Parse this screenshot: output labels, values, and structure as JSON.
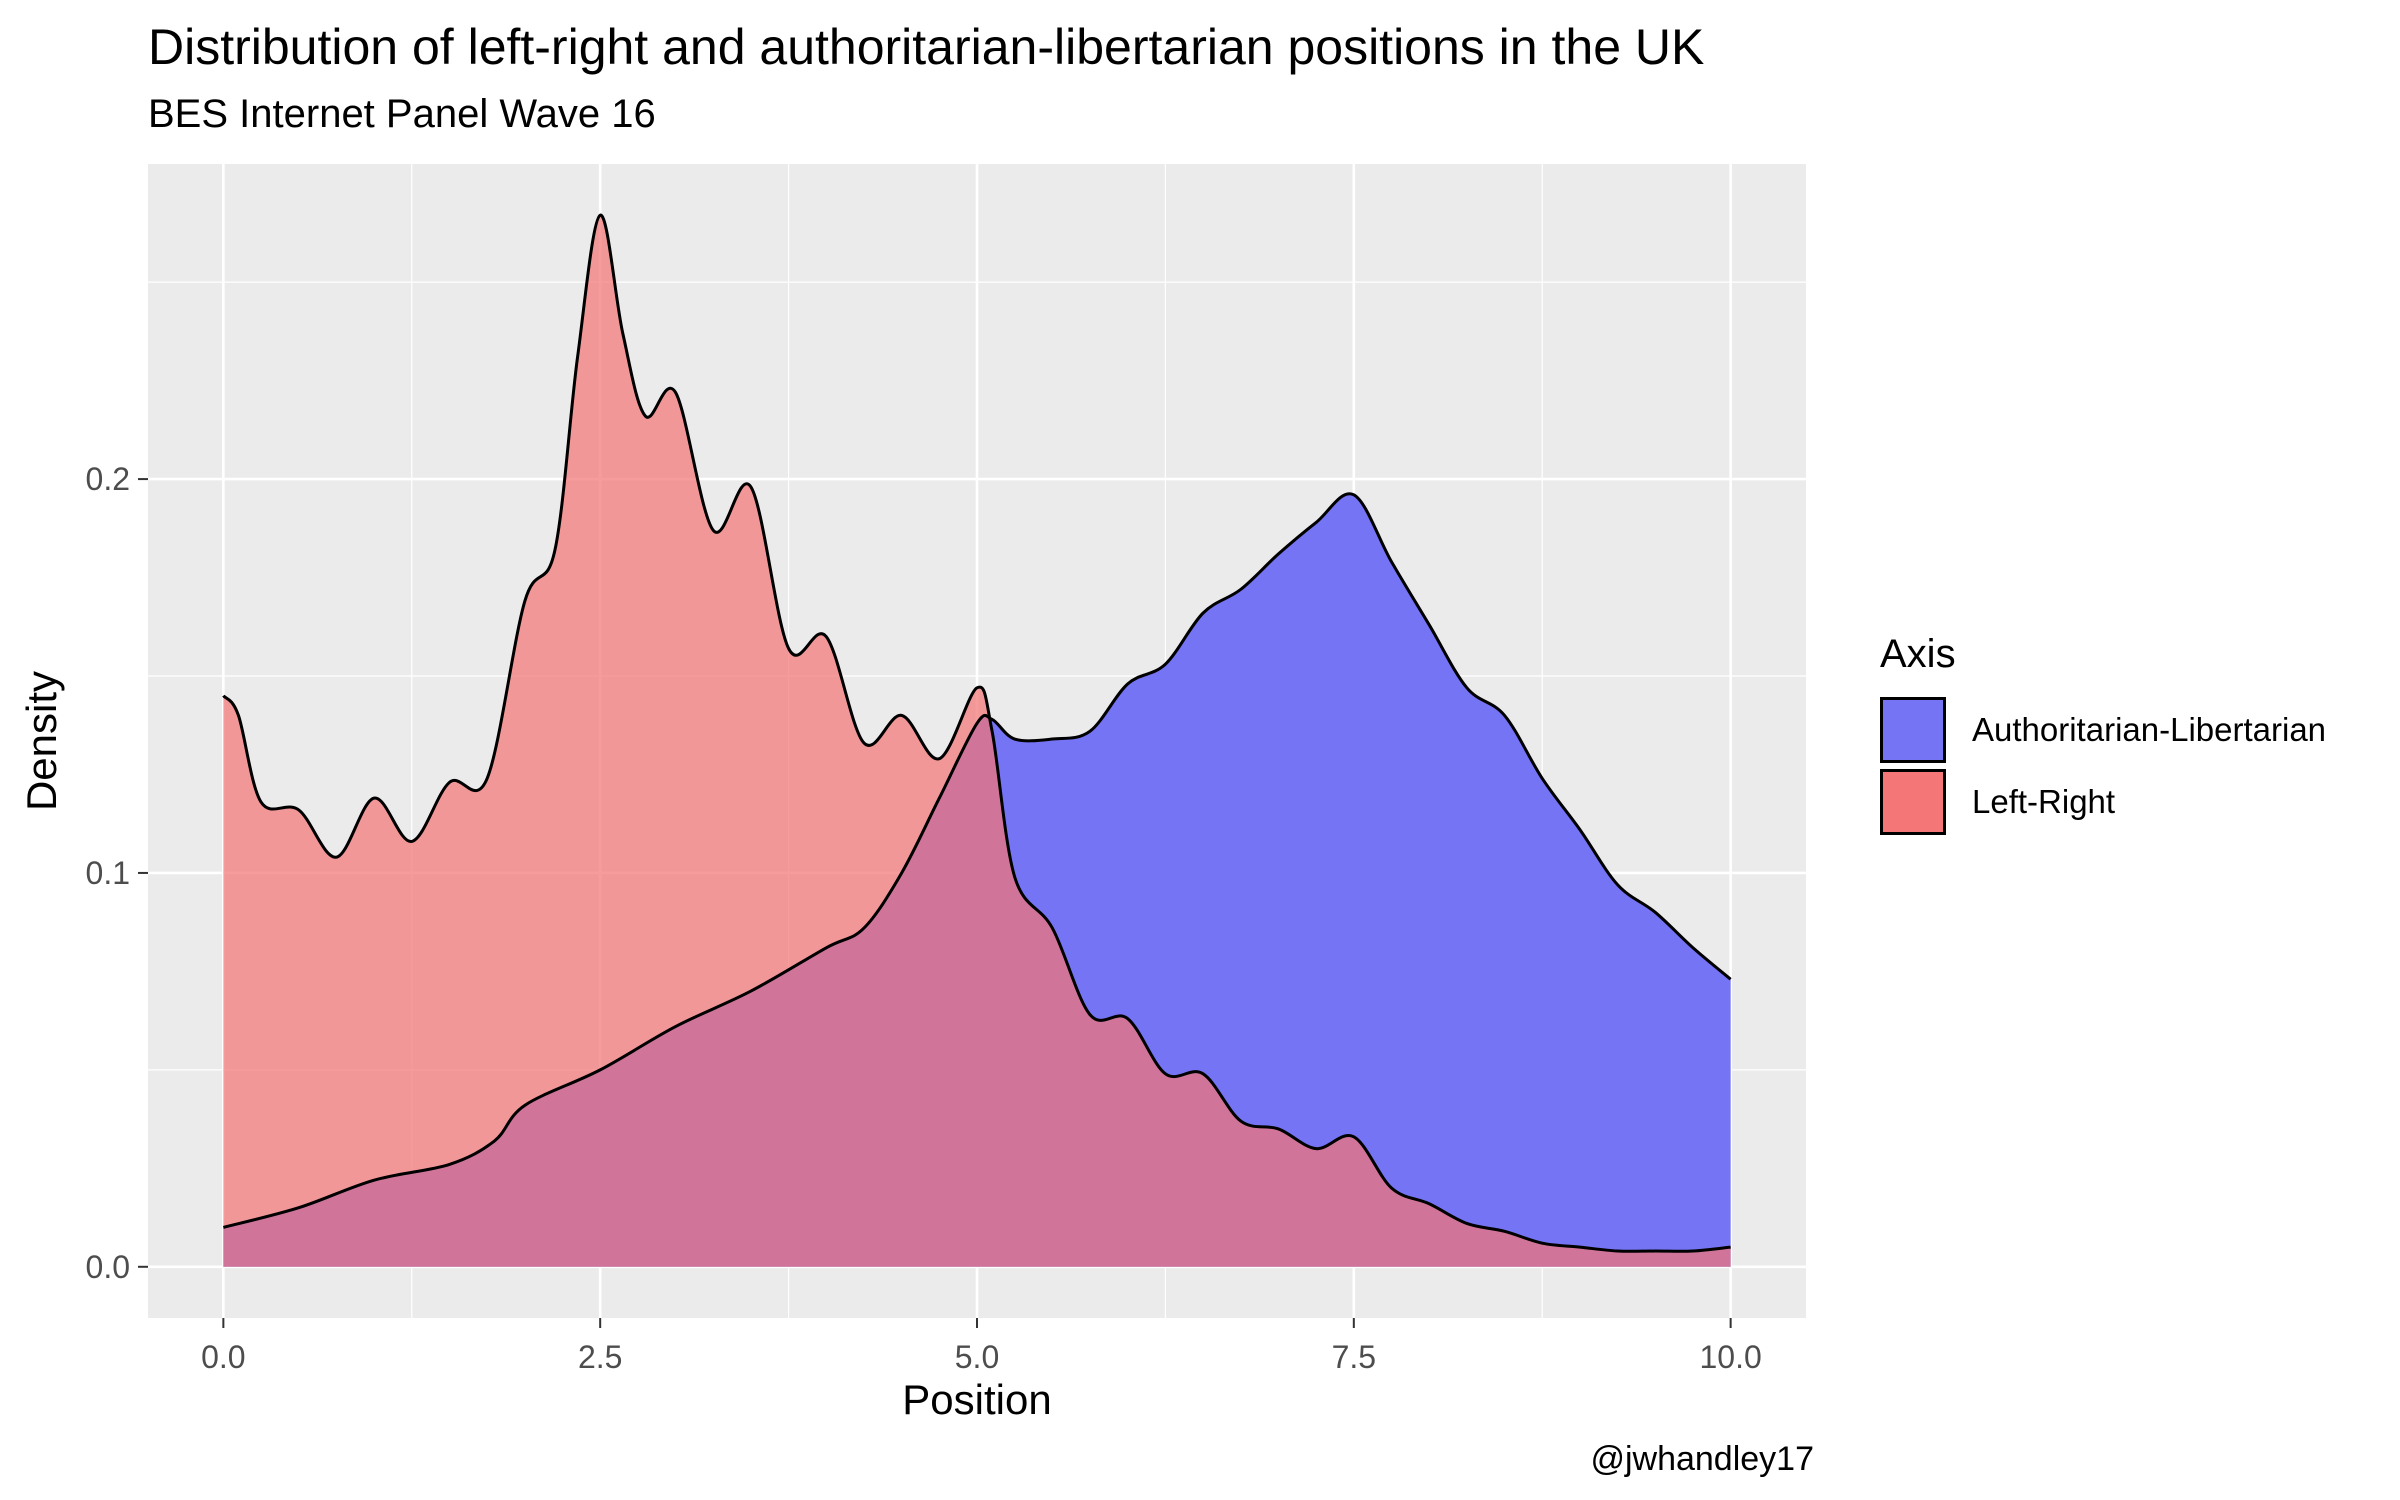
{
  "title": "Distribution of left-right and authoritarian-libertarian positions in the UK",
  "subtitle": "BES Internet Panel Wave 16",
  "credit": "@jwhandley17",
  "legend": {
    "title": "Axis",
    "placement": "right",
    "items": [
      {
        "label": "Authoritarian-Libertarian",
        "color": "#7474F4"
      },
      {
        "label": "Left-Right",
        "color": "#F47676"
      }
    ]
  },
  "chart_data": {
    "type": "area",
    "title": "Distribution of left-right and authoritarian-libertarian positions in the UK",
    "subtitle": "BES Internet Panel Wave 16",
    "xlabel": "Position",
    "ylabel": "Density",
    "xlim": [
      -0.5,
      10.5
    ],
    "ylim": [
      -0.013,
      0.28
    ],
    "x_ticks": [
      0,
      2.5,
      5,
      7.5,
      10
    ],
    "x_tick_labels": [
      "0.0",
      "2.5",
      "5.0",
      "7.5",
      "10.0"
    ],
    "y_ticks": [
      0,
      0.1,
      0.2
    ],
    "y_tick_labels": [
      "0.0",
      "0.1",
      "0.2"
    ],
    "grid": true,
    "overlap_color": "#B93A78",
    "series": [
      {
        "name": "Authoritarian-Libertarian",
        "color": "#7474F4",
        "points": [
          [
            0,
            0.01
          ],
          [
            0.5,
            0.015
          ],
          [
            1.0,
            0.022
          ],
          [
            1.5,
            0.026
          ],
          [
            1.8,
            0.032
          ],
          [
            2.0,
            0.041
          ],
          [
            2.5,
            0.05
          ],
          [
            3.0,
            0.061
          ],
          [
            3.5,
            0.07
          ],
          [
            4.0,
            0.081
          ],
          [
            4.25,
            0.086
          ],
          [
            4.5,
            0.1
          ],
          [
            4.75,
            0.119
          ],
          [
            5.0,
            0.138
          ],
          [
            5.1,
            0.139
          ],
          [
            5.25,
            0.134
          ],
          [
            5.5,
            0.134
          ],
          [
            5.75,
            0.136
          ],
          [
            6.0,
            0.148
          ],
          [
            6.25,
            0.153
          ],
          [
            6.5,
            0.166
          ],
          [
            6.75,
            0.172
          ],
          [
            7.0,
            0.181
          ],
          [
            7.25,
            0.189
          ],
          [
            7.5,
            0.196
          ],
          [
            7.75,
            0.179
          ],
          [
            8.0,
            0.163
          ],
          [
            8.25,
            0.147
          ],
          [
            8.5,
            0.14
          ],
          [
            8.75,
            0.124
          ],
          [
            9.0,
            0.111
          ],
          [
            9.25,
            0.097
          ],
          [
            9.5,
            0.09
          ],
          [
            9.75,
            0.081
          ],
          [
            10.0,
            0.073
          ]
        ]
      },
      {
        "name": "Left-Right",
        "color": "#F47676",
        "points": [
          [
            0,
            0.145
          ],
          [
            0.1,
            0.14
          ],
          [
            0.25,
            0.118
          ],
          [
            0.5,
            0.116
          ],
          [
            0.75,
            0.104
          ],
          [
            1.0,
            0.119
          ],
          [
            1.25,
            0.108
          ],
          [
            1.5,
            0.123
          ],
          [
            1.75,
            0.124
          ],
          [
            2.0,
            0.169
          ],
          [
            2.2,
            0.182
          ],
          [
            2.35,
            0.231
          ],
          [
            2.5,
            0.267
          ],
          [
            2.65,
            0.237
          ],
          [
            2.8,
            0.216
          ],
          [
            3.0,
            0.222
          ],
          [
            3.25,
            0.187
          ],
          [
            3.5,
            0.198
          ],
          [
            3.75,
            0.157
          ],
          [
            4.0,
            0.16
          ],
          [
            4.25,
            0.133
          ],
          [
            4.5,
            0.14
          ],
          [
            4.75,
            0.129
          ],
          [
            5.0,
            0.147
          ],
          [
            5.1,
            0.136
          ],
          [
            5.25,
            0.099
          ],
          [
            5.5,
            0.086
          ],
          [
            5.75,
            0.064
          ],
          [
            6.0,
            0.063
          ],
          [
            6.25,
            0.049
          ],
          [
            6.5,
            0.049
          ],
          [
            6.75,
            0.037
          ],
          [
            7.0,
            0.035
          ],
          [
            7.25,
            0.03
          ],
          [
            7.5,
            0.033
          ],
          [
            7.75,
            0.02
          ],
          [
            8.0,
            0.016
          ],
          [
            8.25,
            0.011
          ],
          [
            8.5,
            0.009
          ],
          [
            8.75,
            0.006
          ],
          [
            9.0,
            0.005
          ],
          [
            9.25,
            0.004
          ],
          [
            9.5,
            0.004
          ],
          [
            9.75,
            0.004
          ],
          [
            10.0,
            0.005
          ]
        ]
      }
    ]
  }
}
